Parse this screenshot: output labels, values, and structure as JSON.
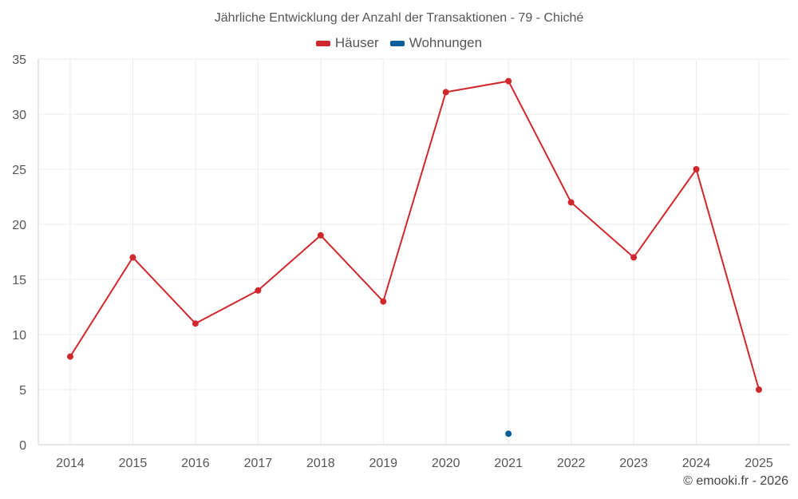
{
  "chart_data": {
    "type": "line",
    "title": "Jährliche Entwicklung der Anzahl der Transaktionen - 79 - Chiché",
    "categories": [
      "2014",
      "2015",
      "2016",
      "2017",
      "2018",
      "2019",
      "2020",
      "2021",
      "2022",
      "2023",
      "2024",
      "2025"
    ],
    "y_ticks": [
      "0",
      "5",
      "10",
      "15",
      "20",
      "25",
      "30",
      "35"
    ],
    "ylim": [
      0,
      35
    ],
    "grid": true,
    "legend_position": "top-center",
    "series": [
      {
        "name": "Häuser",
        "color": "#d0272c",
        "values": [
          8,
          17,
          11,
          14,
          19,
          13,
          32,
          33,
          22,
          17,
          25,
          5
        ],
        "connect": true
      },
      {
        "name": "Wohnungen",
        "color": "#0b5e9c",
        "values": [
          null,
          null,
          null,
          null,
          null,
          null,
          null,
          1,
          null,
          null,
          null,
          null
        ],
        "connect": false
      }
    ]
  },
  "credit": "© emooki.fr - 2026"
}
